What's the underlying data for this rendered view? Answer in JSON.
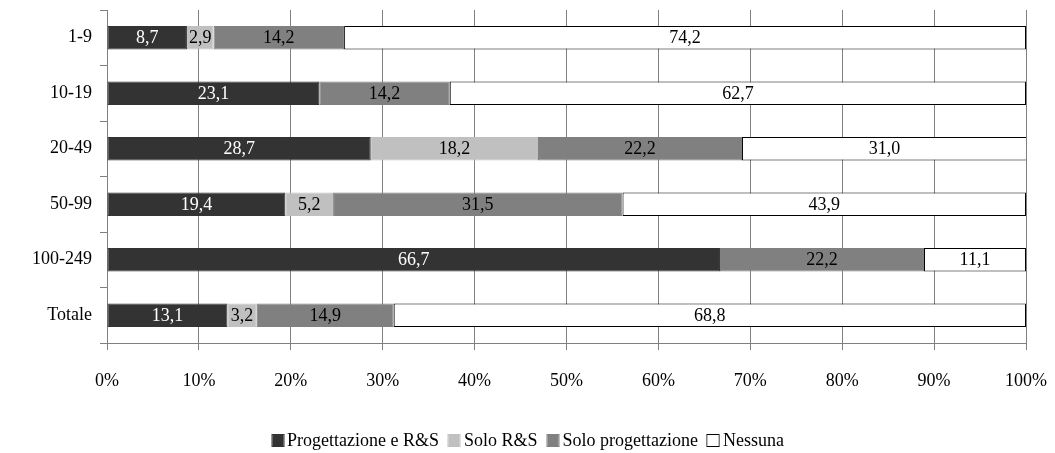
{
  "chart_data": {
    "type": "bar",
    "orientation": "horizontal",
    "stacked": true,
    "categories": [
      "1-9",
      "10-19",
      "20-49",
      "50-99",
      "100-249",
      "Totale"
    ],
    "series": [
      {
        "name": "Progettazione e R&S",
        "color": "#333333",
        "values": [
          8.7,
          23.1,
          28.7,
          19.4,
          66.7,
          13.1
        ],
        "value_labels": [
          "8,7",
          "23,1",
          "28,7",
          "19,4",
          "66,7",
          "13,1"
        ]
      },
      {
        "name": "Solo R&S",
        "color": "#c0c0c0",
        "values": [
          2.9,
          null,
          18.2,
          5.2,
          null,
          3.2
        ],
        "value_labels": [
          "2,9",
          null,
          "18,2",
          "5,2",
          null,
          "3,2"
        ]
      },
      {
        "name": "Solo progettazione",
        "color": "#808080",
        "values": [
          14.2,
          14.2,
          22.2,
          31.5,
          22.2,
          14.9
        ],
        "value_labels": [
          "14,2",
          "14,2",
          "22,2",
          "31,5",
          "22,2",
          "14,9"
        ]
      },
      {
        "name": "Nessuna",
        "color": "#ffffff",
        "values": [
          74.2,
          62.7,
          31.0,
          43.9,
          11.1,
          68.8
        ],
        "value_labels": [
          "74,2",
          "62,7",
          "31,0",
          "43,9",
          "11,1",
          "68,8"
        ]
      }
    ],
    "xlim": [
      0,
      100
    ],
    "xticks": [
      {
        "value": 0,
        "label": "0%"
      },
      {
        "value": 10,
        "label": "10%"
      },
      {
        "value": 20,
        "label": "20%"
      },
      {
        "value": 30,
        "label": "30%"
      },
      {
        "value": 40,
        "label": "40%"
      },
      {
        "value": 50,
        "label": "50%"
      },
      {
        "value": 60,
        "label": "60%"
      },
      {
        "value": 70,
        "label": "70%"
      },
      {
        "value": 80,
        "label": "80%"
      },
      {
        "value": 90,
        "label": "90%"
      },
      {
        "value": 100,
        "label": "100%"
      }
    ],
    "grid": "x",
    "legend": "bottom"
  }
}
